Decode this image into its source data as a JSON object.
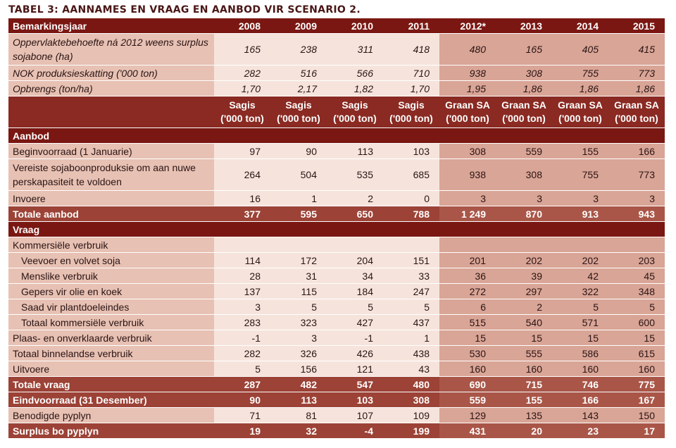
{
  "title": "TABEL 3: AANNAMES EN VRAAG EN AANBOD VIR SCENARIO 2.",
  "header": {
    "label": "Bemarkingsjaar",
    "years": [
      "2008",
      "2009",
      "2010",
      "2011",
      "2012*",
      "2013",
      "2014",
      "2015"
    ]
  },
  "assumptions": [
    {
      "label": "Oppervlaktebehoefte ná 2012 weens surplus sojabone (ha)",
      "values": [
        "165",
        "238",
        "311",
        "418",
        "480",
        "165",
        "405",
        "415"
      ]
    },
    {
      "label": "NOK produksieskatting ('000 ton)",
      "values": [
        "282",
        "516",
        "566",
        "710",
        "938",
        "308",
        "755",
        "773"
      ]
    },
    {
      "label": "Opbrengs (ton/ha)",
      "values": [
        "1,70",
        "2,17",
        "1,82",
        "1,70",
        "1,95",
        "1,86",
        "1,86",
        "1,86"
      ]
    }
  ],
  "units": [
    {
      "line1": "Sagis",
      "line2": "('000 ton)"
    },
    {
      "line1": "Sagis",
      "line2": "('000 ton)"
    },
    {
      "line1": "Sagis",
      "line2": "('000 ton)"
    },
    {
      "line1": "Sagis",
      "line2": "('000 ton)"
    },
    {
      "line1": "Graan SA",
      "line2": "('000 ton)"
    },
    {
      "line1": "Graan SA",
      "line2": "('000 ton)"
    },
    {
      "line1": "Graan SA",
      "line2": "('000 ton)"
    },
    {
      "line1": "Graan SA",
      "line2": "('000 ton)"
    }
  ],
  "supply_section": "Aanbod",
  "supply": [
    {
      "label": "Beginvoorraad (1 Januarie)",
      "values": [
        "97",
        "90",
        "113",
        "103",
        "308",
        "559",
        "155",
        "166"
      ]
    },
    {
      "label": "Vereiste sojaboonproduksie om aan nuwe perskapasiteit te voldoen",
      "values": [
        "264",
        "504",
        "535",
        "685",
        "938",
        "308",
        "755",
        "773"
      ]
    },
    {
      "label": "Invoere",
      "values": [
        "16",
        "1",
        "2",
        "0",
        "3",
        "3",
        "3",
        "3"
      ]
    }
  ],
  "supply_total": {
    "label": "Totale aanbod",
    "values": [
      "377",
      "595",
      "650",
      "788",
      "1 249",
      "870",
      "913",
      "943"
    ]
  },
  "demand_section": "Vraag",
  "demand_commercial_label": "Kommersiële verbruik",
  "demand_commercial": [
    {
      "label": "Veevoer en volvet soja",
      "values": [
        "114",
        "172",
        "204",
        "151",
        "201",
        "202",
        "202",
        "203"
      ]
    },
    {
      "label": "Menslike verbruik",
      "values": [
        "28",
        "31",
        "34",
        "33",
        "36",
        "39",
        "42",
        "45"
      ]
    },
    {
      "label": "Gepers vir olie en koek",
      "values": [
        "137",
        "115",
        "184",
        "247",
        "272",
        "297",
        "322",
        "348"
      ]
    },
    {
      "label": "Saad vir plantdoeleindes",
      "values": [
        "3",
        "5",
        "5",
        "5",
        "6",
        "2",
        "5",
        "5"
      ]
    },
    {
      "label": "Totaal kommersiële verbruik",
      "values": [
        "283",
        "323",
        "427",
        "437",
        "515",
        "540",
        "571",
        "600"
      ]
    }
  ],
  "demand_other": [
    {
      "label": "Plaas- en onverklaarde verbruik",
      "values": [
        "-1",
        "3",
        "-1",
        "1",
        "15",
        "15",
        "15",
        "15"
      ]
    },
    {
      "label": "Totaal binnelandse verbruik",
      "values": [
        "282",
        "326",
        "426",
        "438",
        "530",
        "555",
        "586",
        "615"
      ]
    },
    {
      "label": "Uitvoere",
      "values": [
        "5",
        "156",
        "121",
        "43",
        "160",
        "160",
        "160",
        "160"
      ]
    }
  ],
  "demand_total": {
    "label": "Totale vraag",
    "values": [
      "287",
      "482",
      "547",
      "480",
      "690",
      "715",
      "746",
      "775"
    ]
  },
  "closing_stock": {
    "label": "Eindvoorraad (31 Desember)",
    "values": [
      "90",
      "113",
      "103",
      "308",
      "559",
      "155",
      "166",
      "167"
    ]
  },
  "pipeline": {
    "label": "Benodigde pyplyn",
    "values": [
      "71",
      "81",
      "107",
      "109",
      "129",
      "135",
      "143",
      "150"
    ]
  },
  "surplus": {
    "label": "Surplus bo pyplyn",
    "values": [
      "19",
      "32",
      "-4",
      "199",
      "431",
      "20",
      "23",
      "17"
    ]
  }
}
